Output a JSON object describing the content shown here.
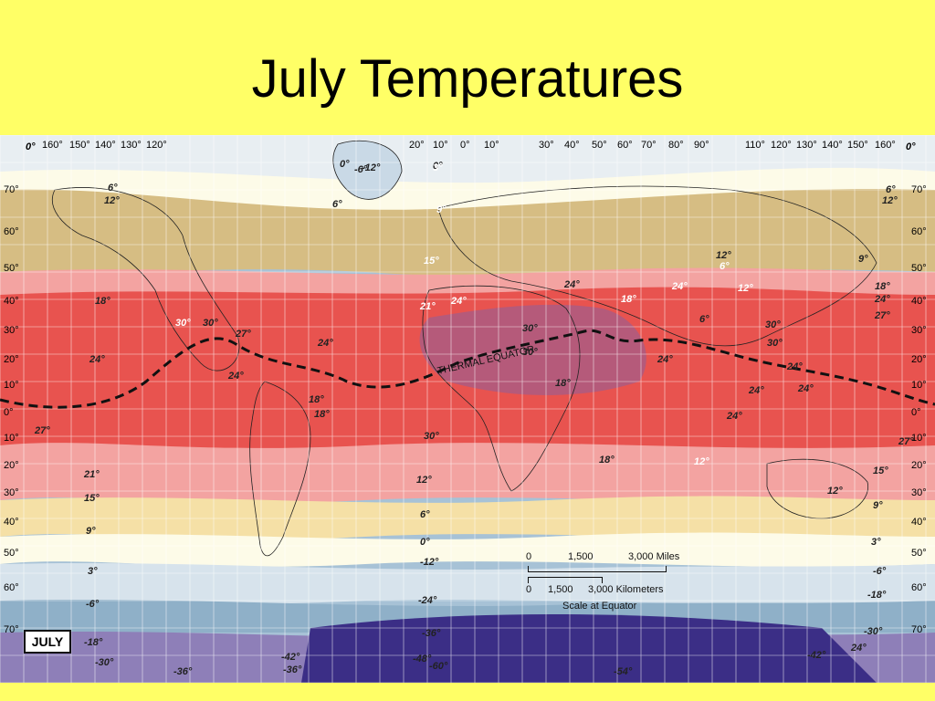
{
  "title": "July Temperatures",
  "map": {
    "legend_box": "JULY",
    "equator_label": "THERMAL EQUATOR",
    "scale": {
      "miles": [
        "0",
        "1,500",
        "3,000 Miles"
      ],
      "km": [
        "0",
        "1,500",
        "3,000 Kilometers"
      ],
      "note": "Scale at Equator"
    },
    "top_longitudes": [
      "160°",
      "150°",
      "140°",
      "130°",
      "120°",
      "20°",
      "10°",
      "0°",
      "10°",
      "30°",
      "40°",
      "50°",
      "60°",
      "70°",
      "80°",
      "90°",
      "110°",
      "120°",
      "130°",
      "140°",
      "150°",
      "160°"
    ],
    "corner_top_left": "0°",
    "corner_top_right": "0°",
    "left_latitudes": [
      "70°",
      "60°",
      "50°",
      "40°",
      "30°",
      "20°",
      "10°",
      "0°",
      "10°",
      "20°",
      "30°",
      "40°",
      "50°",
      "60°",
      "70°"
    ],
    "right_latitudes": [
      "70°",
      "60°",
      "50°",
      "40°",
      "30°",
      "20°",
      "10°",
      "0°",
      "10°",
      "20°",
      "30°",
      "40°",
      "50°",
      "60°",
      "70°"
    ],
    "isotherms": [
      "6°",
      "12°",
      "18°",
      "24°",
      "27°",
      "21°",
      "15°",
      "9°",
      "3°",
      "-6°",
      "-18°",
      "-30°",
      "-36°",
      "-42°",
      "-36°",
      "0°",
      "-6°",
      "-12°",
      "6°",
      "0°",
      "3°",
      "9°",
      "15°",
      "21°",
      "24°",
      "30°",
      "30°",
      "27°",
      "24°",
      "24°",
      "18°",
      "18°",
      "12°",
      "6°",
      "0°",
      "-12°",
      "-24°",
      "-36°",
      "-48°",
      "-60°",
      "-54°",
      "-42°",
      "24°",
      "30°",
      "30°",
      "18°",
      "24°",
      "12°",
      "6°",
      "12°",
      "24°",
      "30°",
      "30°",
      "30°",
      "24°",
      "24°",
      "24°",
      "24°",
      "18°",
      "12°",
      "9°",
      "6°",
      "12°",
      "18°",
      "24°",
      "27°",
      "27°",
      "15°",
      "9°",
      "3°",
      "-6°",
      "-18°",
      "-30°",
      "6°",
      "12°",
      "18°",
      "24°"
    ]
  },
  "colors": {
    "background": "#ffff66",
    "hot": "#e8534f",
    "very_hot": "#b55a7a",
    "warm": "#f3a3a1",
    "mild": "#f5e0a6",
    "cool": "#d6bd83",
    "cold": "#a7c2d6",
    "very_cold": "#3b2e86"
  }
}
